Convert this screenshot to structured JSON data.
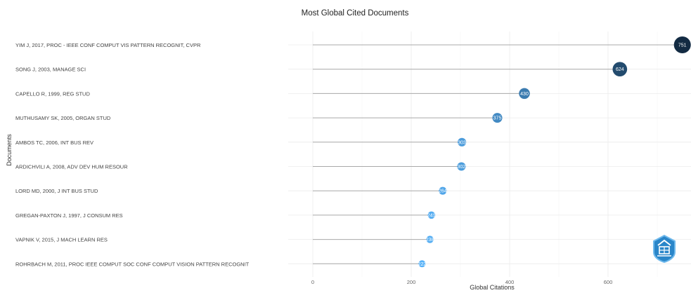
{
  "chart_data": {
    "type": "lollipop",
    "title": "Most Global Cited Documents",
    "xlabel": "Global Citations",
    "ylabel": "Documents",
    "xlim": [
      -50,
      760
    ],
    "xticks": [
      0,
      200,
      400,
      600
    ],
    "grid": true,
    "categories": [
      "YIM J, 2017, PROC - IEEE CONF COMPUT VIS PATTERN RECOGNIT, CVPR",
      "SONG J, 2003, MANAGE SCI",
      "CAPELLO R, 1999, REG STUD",
      "MUTHUSAMY SK, 2005, ORGAN STUD",
      "AMBOS TC, 2006, INT BUS REV",
      "ARDICHVILI A, 2008, ADV DEV HUM RESOUR",
      "LORD MD, 2000, J INT BUS STUD",
      "GREGAN-PAXTON J, 1997, J CONSUM RES",
      "VAPNIK V, 2015, J MACH LEARN RES",
      "ROHRBACH M, 2011, PROC IEEE COMPUT SOC CONF COMPUT VISION PATTERN RECOGNIT"
    ],
    "values": [
      751,
      624,
      430,
      375,
      303,
      302,
      264,
      241,
      238,
      222
    ],
    "color_low": "#56b1f7",
    "color_high": "#132b43"
  }
}
